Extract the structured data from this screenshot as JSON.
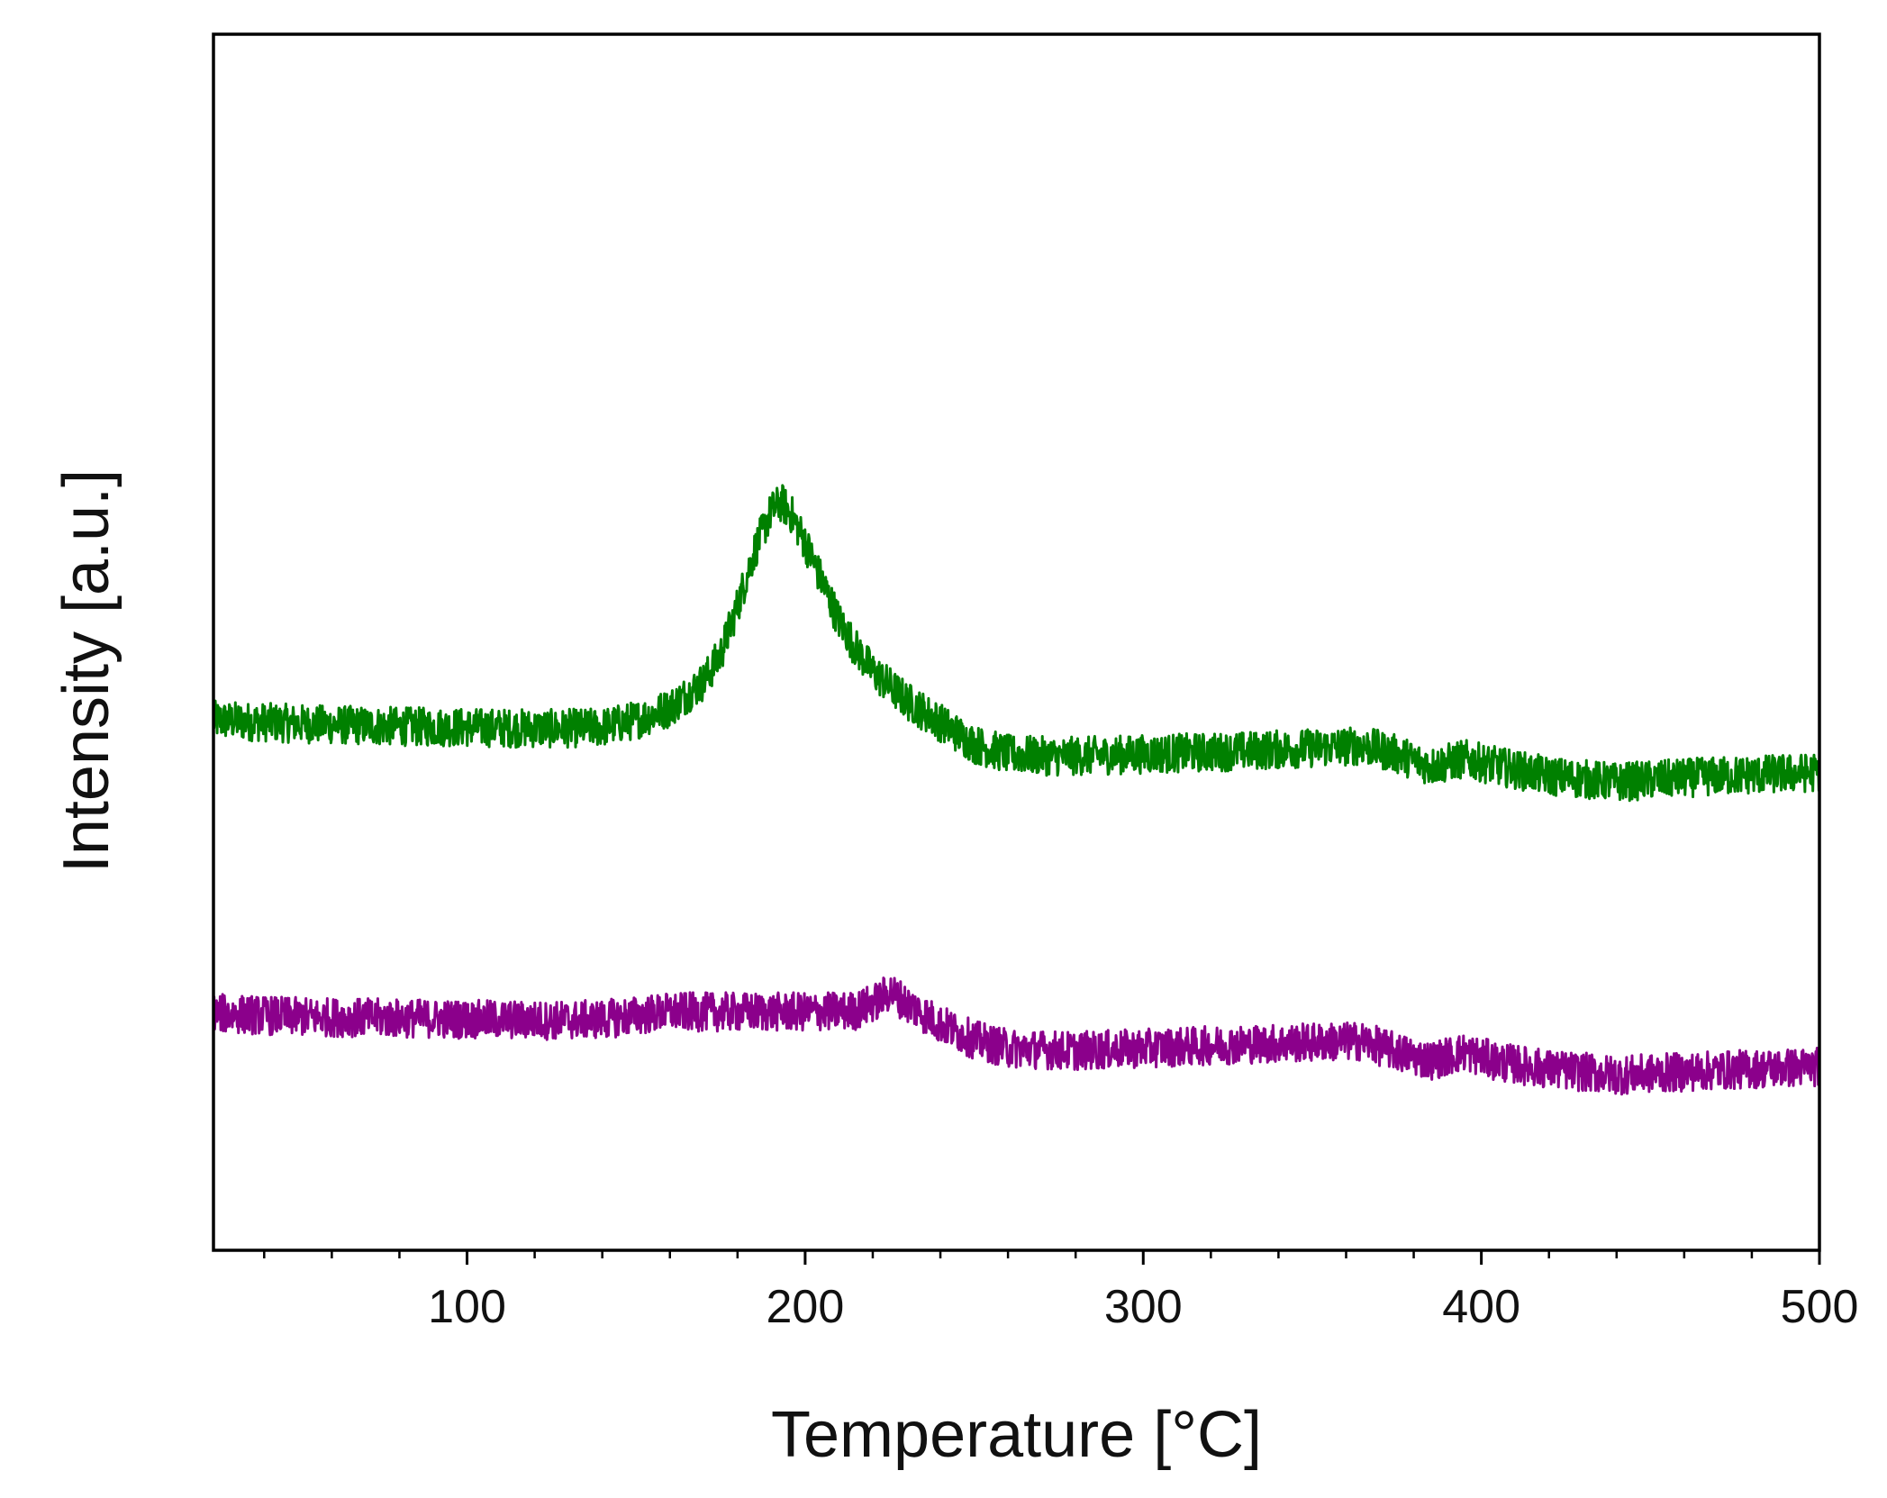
{
  "chart_data": {
    "type": "line",
    "title": "",
    "xlabel": "Temperature [°C]",
    "ylabel": "Intensity [a.u.]",
    "xlim": [
      25,
      500
    ],
    "ylim": [
      0,
      100
    ],
    "x_ticks": [
      100,
      200,
      300,
      400,
      500
    ],
    "x_minor_step": 20,
    "y_ticks": [],
    "grid": false,
    "legend": "none",
    "series": [
      {
        "color": "#008000",
        "noise": 1.6,
        "points": [
          [
            25,
            43.6
          ],
          [
            50,
            43.3
          ],
          [
            75,
            43.1
          ],
          [
            100,
            43.0
          ],
          [
            125,
            42.9
          ],
          [
            140,
            43.0
          ],
          [
            150,
            43.6
          ],
          [
            160,
            44.6
          ],
          [
            170,
            46.8
          ],
          [
            175,
            49.0
          ],
          [
            180,
            53.0
          ],
          [
            185,
            57.5
          ],
          [
            190,
            60.8
          ],
          [
            193,
            61.5
          ],
          [
            196,
            60.5
          ],
          [
            200,
            58.2
          ],
          [
            205,
            55.0
          ],
          [
            210,
            51.8
          ],
          [
            215,
            49.5
          ],
          [
            220,
            47.6
          ],
          [
            225,
            46.4
          ],
          [
            230,
            45.2
          ],
          [
            240,
            43.4
          ],
          [
            250,
            41.6
          ],
          [
            260,
            40.8
          ],
          [
            275,
            40.6
          ],
          [
            300,
            40.8
          ],
          [
            325,
            41.0
          ],
          [
            350,
            41.3
          ],
          [
            365,
            41.5
          ],
          [
            375,
            40.8
          ],
          [
            385,
            39.8
          ],
          [
            395,
            40.4
          ],
          [
            405,
            39.8
          ],
          [
            420,
            39.0
          ],
          [
            440,
            38.5
          ],
          [
            470,
            39.0
          ],
          [
            500,
            39.3
          ]
        ]
      },
      {
        "color": "#8b008b",
        "noise": 1.6,
        "points": [
          [
            25,
            19.5
          ],
          [
            50,
            19.2
          ],
          [
            75,
            19.1
          ],
          [
            100,
            19.0
          ],
          [
            125,
            18.9
          ],
          [
            140,
            19.0
          ],
          [
            160,
            19.6
          ],
          [
            180,
            19.6
          ],
          [
            200,
            19.6
          ],
          [
            215,
            19.7
          ],
          [
            222,
            20.6
          ],
          [
            225,
            21.3
          ],
          [
            230,
            20.3
          ],
          [
            240,
            18.6
          ],
          [
            250,
            17.3
          ],
          [
            260,
            16.6
          ],
          [
            280,
            16.4
          ],
          [
            300,
            16.6
          ],
          [
            325,
            16.9
          ],
          [
            350,
            17.1
          ],
          [
            365,
            17.2
          ],
          [
            375,
            16.3
          ],
          [
            385,
            15.6
          ],
          [
            395,
            16.3
          ],
          [
            405,
            15.5
          ],
          [
            420,
            14.9
          ],
          [
            440,
            14.4
          ],
          [
            470,
            14.8
          ],
          [
            500,
            15.1
          ]
        ]
      }
    ]
  }
}
